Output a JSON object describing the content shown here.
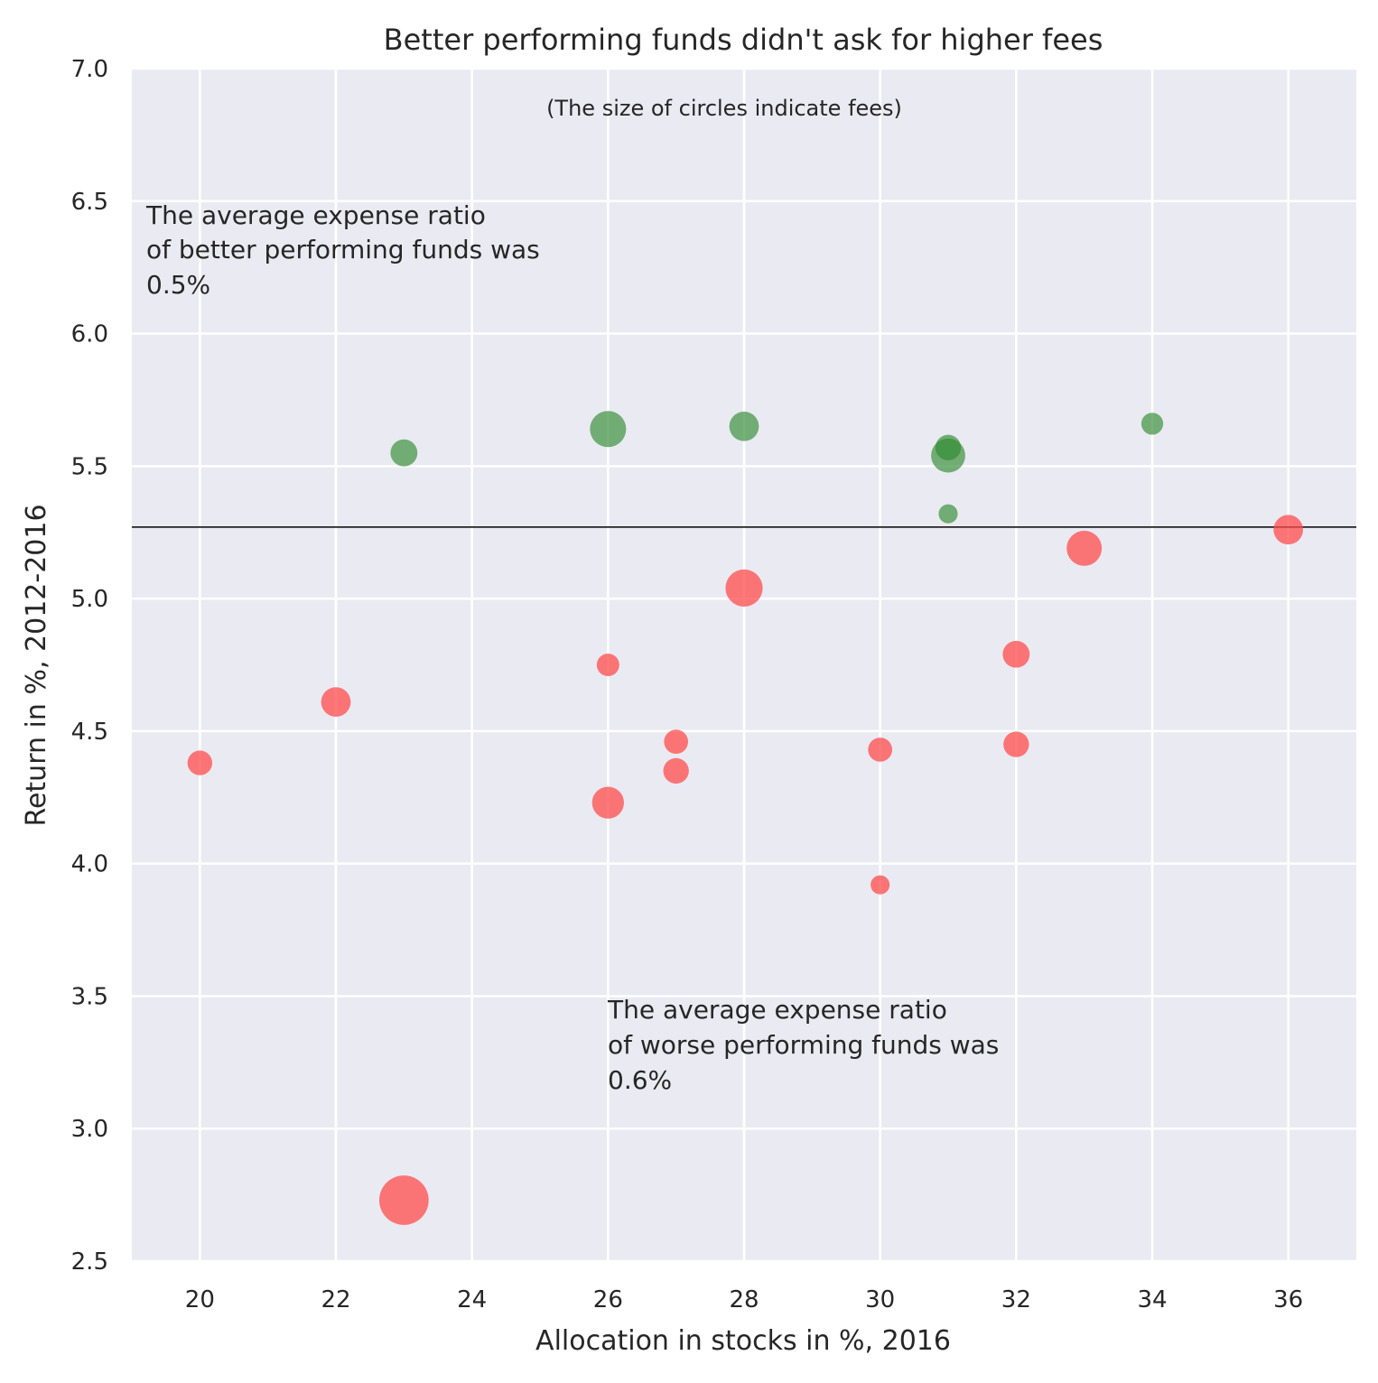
{
  "chart_data": {
    "type": "scatter",
    "title": "Better performing funds didn't ask for higher fees",
    "subtitle": "(The size of circles indicate fees)",
    "xlabel": "Allocation in stocks in %, 2016",
    "ylabel": "Return in %, 2012-2016",
    "xlim": [
      19,
      37
    ],
    "ylim": [
      2.5,
      7.0
    ],
    "xticks": [
      20,
      22,
      24,
      26,
      28,
      30,
      32,
      34,
      36
    ],
    "yticks": [
      2.5,
      3.0,
      3.5,
      4.0,
      4.5,
      5.0,
      5.5,
      6.0,
      6.5,
      7.0
    ],
    "xtick_labels": [
      "20",
      "22",
      "24",
      "26",
      "28",
      "30",
      "32",
      "34",
      "36"
    ],
    "ytick_labels": [
      "2.5",
      "3.0",
      "3.5",
      "4.0",
      "4.5",
      "5.0",
      "5.5",
      "6.0",
      "6.5",
      "7.0"
    ],
    "grid": true,
    "background": "#eaeaf2",
    "reference_line": {
      "y": 5.27,
      "color": "#000000"
    },
    "annotations": {
      "better": [
        "The average expense ratio",
        "of better performing funds was",
        "0.5%"
      ],
      "worse": [
        "The average expense ratio",
        "of worse performing funds was",
        "0.6%"
      ]
    },
    "series": [
      {
        "color": "#2e8b2e",
        "opacity": 0.65,
        "points": [
          {
            "x": 23,
            "y": 5.55,
            "size": 0.5
          },
          {
            "x": 26,
            "y": 5.64,
            "size": 0.9
          },
          {
            "x": 28,
            "y": 5.65,
            "size": 0.6
          },
          {
            "x": 31,
            "y": 5.54,
            "size": 0.8
          },
          {
            "x": 31,
            "y": 5.57,
            "size": 0.45
          },
          {
            "x": 31,
            "y": 5.32,
            "size": 0.25
          },
          {
            "x": 34,
            "y": 5.66,
            "size": 0.33
          }
        ]
      },
      {
        "color": "#ff4c4c",
        "opacity": 0.75,
        "points": [
          {
            "x": 20,
            "y": 4.38,
            "size": 0.42
          },
          {
            "x": 22,
            "y": 4.61,
            "size": 0.6
          },
          {
            "x": 23,
            "y": 2.73,
            "size": 1.68
          },
          {
            "x": 26,
            "y": 4.75,
            "size": 0.35
          },
          {
            "x": 26,
            "y": 4.23,
            "size": 0.7
          },
          {
            "x": 27,
            "y": 4.46,
            "size": 0.4
          },
          {
            "x": 27,
            "y": 4.35,
            "size": 0.45
          },
          {
            "x": 28,
            "y": 5.04,
            "size": 0.95
          },
          {
            "x": 30,
            "y": 4.43,
            "size": 0.4
          },
          {
            "x": 30,
            "y": 3.92,
            "size": 0.25
          },
          {
            "x": 32,
            "y": 4.79,
            "size": 0.5
          },
          {
            "x": 32,
            "y": 4.45,
            "size": 0.45
          },
          {
            "x": 33,
            "y": 5.19,
            "size": 0.85
          },
          {
            "x": 36,
            "y": 5.26,
            "size": 0.6
          }
        ]
      }
    ]
  }
}
